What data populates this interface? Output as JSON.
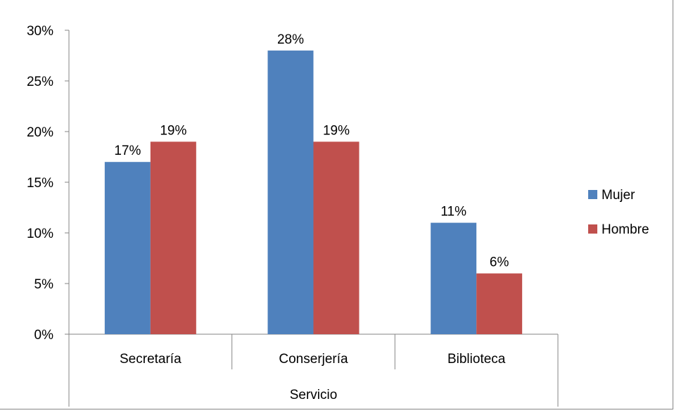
{
  "chart_data": {
    "type": "bar",
    "categories": [
      "Secretaría",
      "Conserjería",
      "Biblioteca"
    ],
    "series": [
      {
        "name": "Mujer",
        "values": [
          17,
          28,
          11
        ],
        "color": "#4F81BD",
        "labels": [
          "17%",
          "28%",
          "11%"
        ]
      },
      {
        "name": "Hombre",
        "values": [
          19,
          19,
          6
        ],
        "color": "#C0504D",
        "labels": [
          "19%",
          "19%",
          "6%"
        ]
      }
    ],
    "xlabel": "Servicio",
    "ylabel": "",
    "ylim": [
      0,
      30
    ],
    "yticks": [
      0,
      5,
      10,
      15,
      20,
      25,
      30
    ],
    "ytick_labels": [
      "0%",
      "5%",
      "10%",
      "15%",
      "20%",
      "25%",
      "30%"
    ],
    "grid": false,
    "legend": "right"
  }
}
